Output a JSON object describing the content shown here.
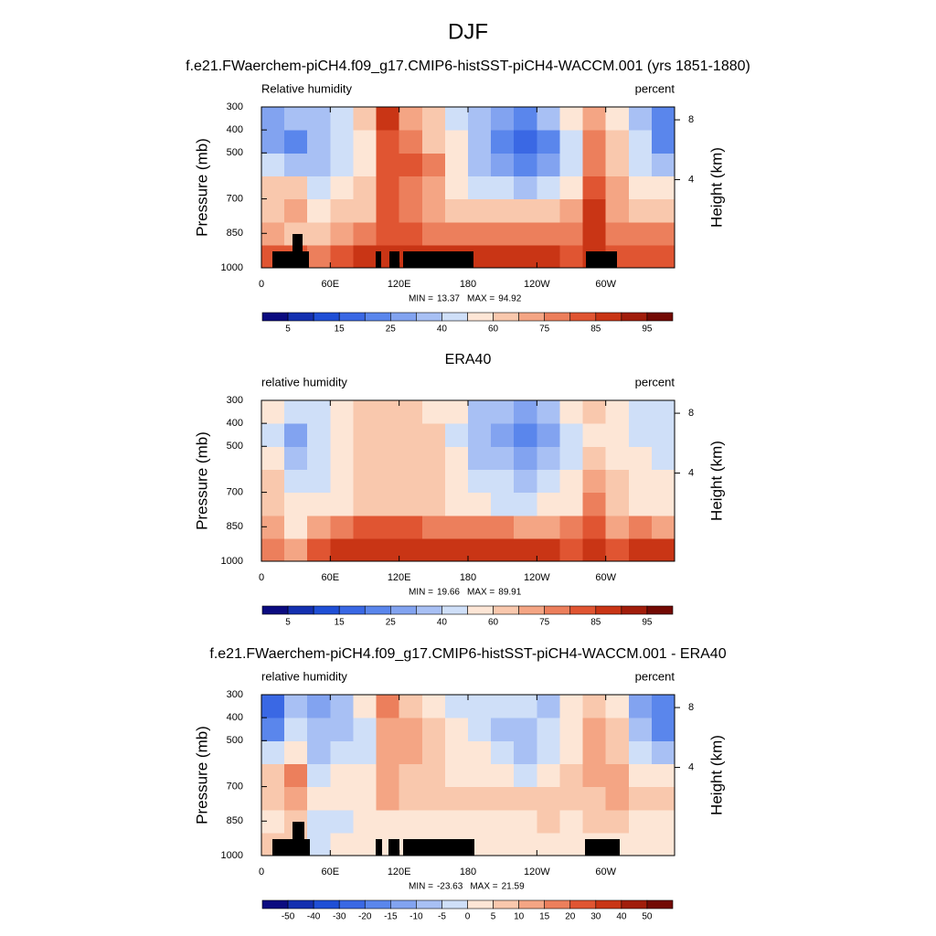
{
  "title": "DJF",
  "chart_data": [
    {
      "type": "contour",
      "title": "f.e21.FWaerchem-piCH4.f09_g17.CMIP6-histSST-piCH4-WACCM.001 (yrs 1851-1880)",
      "left_string": "Relative humidity",
      "right_string": "percent",
      "ylabel": "Pressure (mb)",
      "y2label": "Height (km)",
      "xlim": [
        0,
        360
      ],
      "xticks": [
        0,
        {
          "value": 60,
          "label": "60E"
        },
        {
          "value": 120,
          "label": "120E"
        },
        180,
        {
          "value": 240,
          "label": "120W"
        },
        {
          "value": 300,
          "label": "60W"
        }
      ],
      "ylim": [
        1000,
        300
      ],
      "yticks": [
        300,
        400,
        500,
        700,
        850,
        1000
      ],
      "y2ticks": [
        4,
        8
      ],
      "x": [
        10,
        30,
        50,
        70,
        90,
        110,
        130,
        150,
        170,
        190,
        210,
        230,
        250,
        270,
        290,
        310,
        330,
        350
      ],
      "y": [
        950,
        850,
        750,
        650,
        550,
        450,
        350
      ],
      "z": [
        [
          82,
          80,
          78,
          83,
          85,
          85,
          85,
          85,
          85,
          85,
          85,
          85,
          85,
          82,
          88,
          80,
          82,
          82
        ],
        [
          72,
          62,
          60,
          72,
          78,
          80,
          80,
          78,
          78,
          78,
          75,
          75,
          78,
          78,
          85,
          75,
          78,
          75
        ],
        [
          68,
          70,
          52,
          62,
          65,
          80,
          78,
          72,
          68,
          62,
          60,
          60,
          60,
          70,
          85,
          72,
          62,
          65
        ],
        [
          65,
          62,
          42,
          55,
          62,
          80,
          78,
          70,
          58,
          48,
          40,
          35,
          40,
          55,
          82,
          72,
          58,
          58
        ],
        [
          45,
          35,
          32,
          45,
          58,
          80,
          80,
          75,
          55,
          38,
          28,
          20,
          25,
          45,
          78,
          65,
          45,
          35
        ],
        [
          28,
          22,
          30,
          40,
          55,
          80,
          78,
          68,
          50,
          32,
          22,
          15,
          22,
          45,
          75,
          60,
          40,
          20
        ],
        [
          25,
          30,
          35,
          42,
          65,
          85,
          72,
          62,
          48,
          35,
          28,
          22,
          30,
          50,
          70,
          55,
          35,
          22
        ]
      ],
      "stats": [
        {
          "label": "MIN =",
          "value": 13.37
        },
        {
          "label": "MAX =",
          "value": 94.92
        }
      ],
      "levels": [
        5,
        10,
        15,
        20,
        25,
        30,
        40,
        50,
        60,
        70,
        75,
        80,
        85,
        90,
        95
      ],
      "level_ticks": [
        5,
        15,
        25,
        40,
        60,
        75,
        85,
        95
      ],
      "colors": [
        "#0b0b80",
        "#1430b0",
        "#1f4fd6",
        "#3a68e4",
        "#5a86ec",
        "#82a3f0",
        "#a8c0f4",
        "#cfdff8",
        "#fde6d6",
        "#f9c8ad",
        "#f4a584",
        "#ec7f5c",
        "#e05532",
        "#c93515",
        "#a11d0b",
        "#730a04"
      ]
    },
    {
      "type": "contour",
      "title": "ERA40",
      "left_string": "relative humidity",
      "right_string": "percent",
      "ylabel": "Pressure (mb)",
      "y2label": "Height (km)",
      "xlim": [
        0,
        360
      ],
      "xticks": [
        0,
        {
          "value": 60,
          "label": "60E"
        },
        {
          "value": 120,
          "label": "120E"
        },
        180,
        {
          "value": 240,
          "label": "120W"
        },
        {
          "value": 300,
          "label": "60W"
        }
      ],
      "ylim": [
        1000,
        300
      ],
      "yticks": [
        300,
        400,
        500,
        700,
        850,
        1000
      ],
      "y2ticks": [
        4,
        8
      ],
      "x": [
        10,
        30,
        50,
        70,
        90,
        110,
        130,
        150,
        170,
        190,
        210,
        230,
        250,
        270,
        290,
        310,
        330,
        350
      ],
      "y": [
        950,
        850,
        750,
        650,
        550,
        450,
        350
      ],
      "z": [
        [
          75,
          70,
          80,
          85,
          88,
          88,
          88,
          88,
          88,
          85,
          85,
          85,
          85,
          82,
          85,
          82,
          85,
          85
        ],
        [
          70,
          55,
          72,
          78,
          80,
          80,
          80,
          78,
          78,
          75,
          75,
          72,
          72,
          75,
          80,
          72,
          75,
          72
        ],
        [
          62,
          52,
          50,
          58,
          62,
          68,
          68,
          62,
          58,
          52,
          48,
          48,
          50,
          58,
          75,
          62,
          58,
          58
        ],
        [
          60,
          40,
          45,
          55,
          62,
          68,
          68,
          62,
          55,
          45,
          40,
          38,
          40,
          50,
          70,
          60,
          55,
          55
        ],
        [
          52,
          32,
          42,
          52,
          62,
          68,
          68,
          62,
          50,
          38,
          30,
          28,
          32,
          48,
          62,
          58,
          50,
          45
        ],
        [
          48,
          25,
          40,
          50,
          62,
          68,
          65,
          60,
          48,
          35,
          28,
          22,
          28,
          45,
          58,
          55,
          48,
          40
        ],
        [
          52,
          40,
          48,
          50,
          62,
          65,
          62,
          58,
          50,
          38,
          30,
          28,
          38,
          50,
          60,
          55,
          48,
          42
        ]
      ],
      "stats": [
        {
          "label": "MIN =",
          "value": 19.66
        },
        {
          "label": "MAX =",
          "value": 89.91
        }
      ],
      "levels": [
        5,
        10,
        15,
        20,
        25,
        30,
        40,
        50,
        60,
        70,
        75,
        80,
        85,
        90,
        95
      ],
      "level_ticks": [
        5,
        15,
        25,
        40,
        60,
        75,
        85,
        95
      ],
      "colors": [
        "#0b0b80",
        "#1430b0",
        "#1f4fd6",
        "#3a68e4",
        "#5a86ec",
        "#82a3f0",
        "#a8c0f4",
        "#cfdff8",
        "#fde6d6",
        "#f9c8ad",
        "#f4a584",
        "#ec7f5c",
        "#e05532",
        "#c93515",
        "#a11d0b",
        "#730a04"
      ]
    },
    {
      "type": "contour",
      "title": "f.e21.FWaerchem-piCH4.f09_g17.CMIP6-histSST-piCH4-WACCM.001 - ERA40",
      "left_string": "relative humidity",
      "right_string": "percent",
      "ylabel": "Pressure (mb)",
      "y2label": "Height (km)",
      "xlim": [
        0,
        360
      ],
      "xticks": [
        0,
        {
          "value": 60,
          "label": "60E"
        },
        {
          "value": 120,
          "label": "120E"
        },
        180,
        {
          "value": 240,
          "label": "120W"
        },
        {
          "value": 300,
          "label": "60W"
        }
      ],
      "ylim": [
        1000,
        300
      ],
      "yticks": [
        300,
        400,
        500,
        700,
        850,
        1000
      ],
      "y2ticks": [
        4,
        8
      ],
      "x": [
        10,
        30,
        50,
        70,
        90,
        110,
        130,
        150,
        170,
        190,
        210,
        230,
        250,
        270,
        290,
        310,
        330,
        350
      ],
      "y": [
        950,
        850,
        750,
        650,
        550,
        450,
        350
      ],
      "z": [
        [
          5,
          8,
          -2,
          0,
          0,
          0,
          0,
          0,
          0,
          2,
          2,
          2,
          2,
          2,
          3,
          0,
          0,
          0
        ],
        [
          2,
          5,
          -5,
          -3,
          0,
          2,
          2,
          2,
          2,
          2,
          2,
          3,
          5,
          3,
          5,
          5,
          3,
          3
        ],
        [
          5,
          10,
          2,
          3,
          3,
          10,
          8,
          5,
          5,
          5,
          8,
          8,
          5,
          8,
          8,
          10,
          5,
          5
        ],
        [
          5,
          15,
          -2,
          0,
          0,
          10,
          8,
          5,
          2,
          2,
          0,
          -3,
          0,
          5,
          10,
          12,
          3,
          3
        ],
        [
          -5,
          3,
          -10,
          -5,
          -3,
          10,
          10,
          8,
          3,
          0,
          -3,
          -8,
          -5,
          0,
          10,
          8,
          -3,
          -8
        ],
        [
          -20,
          -5,
          -8,
          -8,
          -5,
          10,
          10,
          5,
          2,
          -3,
          -8,
          -10,
          -5,
          0,
          12,
          5,
          -8,
          -20
        ],
        [
          -25,
          -8,
          -12,
          -8,
          0,
          15,
          8,
          3,
          -2,
          -3,
          -2,
          -5,
          -8,
          0,
          8,
          0,
          -12,
          -20
        ]
      ],
      "stats": [
        {
          "label": "MIN =",
          "value": -23.63
        },
        {
          "label": "MAX =",
          "value": 21.59
        }
      ],
      "levels": [
        -50,
        -40,
        -30,
        -20,
        -15,
        -10,
        -5,
        0,
        5,
        10,
        15,
        20,
        30,
        40,
        50
      ],
      "level_ticks": [
        -50,
        -40,
        -30,
        -20,
        -15,
        -10,
        -5,
        0,
        5,
        10,
        15,
        20,
        30,
        40,
        50
      ],
      "colors": [
        "#0b0b80",
        "#1430b0",
        "#1f4fd6",
        "#3a68e4",
        "#5a86ec",
        "#82a3f0",
        "#a8c0f4",
        "#cfdff8",
        "#fde6d6",
        "#f9c8ad",
        "#f4a584",
        "#ec7f5c",
        "#e05532",
        "#c93515",
        "#a11d0b",
        "#730a04"
      ]
    }
  ]
}
